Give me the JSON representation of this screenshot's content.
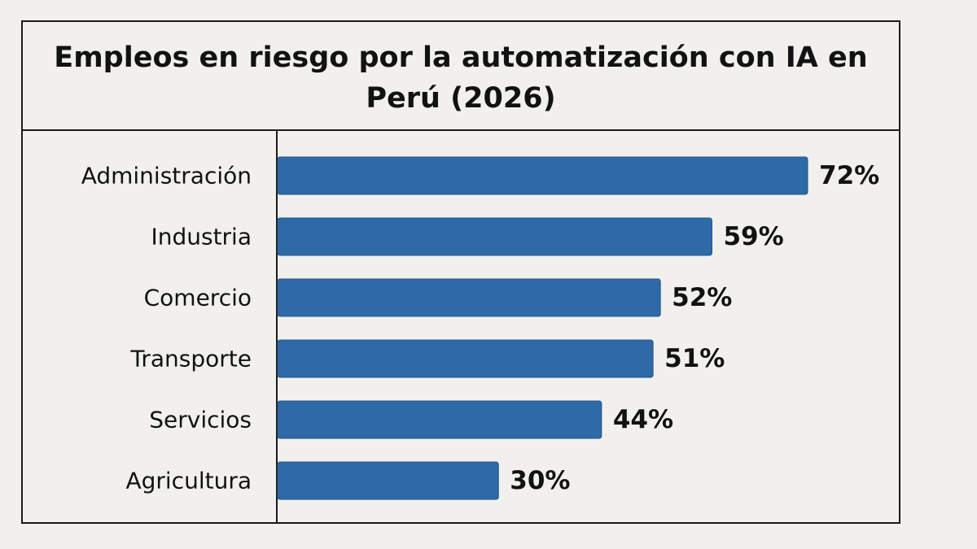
{
  "chart_data": {
    "type": "bar",
    "orientation": "horizontal",
    "title": "Empleos en riesgo por la automatización con IA en Perú (2026)",
    "categories": [
      "Administración",
      "Industria",
      "Comercio",
      "Transporte",
      "Servicios",
      "Agricultura"
    ],
    "values": [
      72,
      59,
      52,
      51,
      44,
      30
    ],
    "value_labels": [
      "72%",
      "59%",
      "52%",
      "51%",
      "44%",
      "30%"
    ],
    "unit": "%",
    "xlabel": "",
    "ylabel": "",
    "xlim": [
      0,
      72
    ],
    "grid": false,
    "legend": "none",
    "colors": {
      "bar": "#2e6aa6",
      "bar_stroke": "#24578b",
      "text": "#121212",
      "background": "#f1f0ed",
      "border": "#1a1a1a"
    }
  }
}
